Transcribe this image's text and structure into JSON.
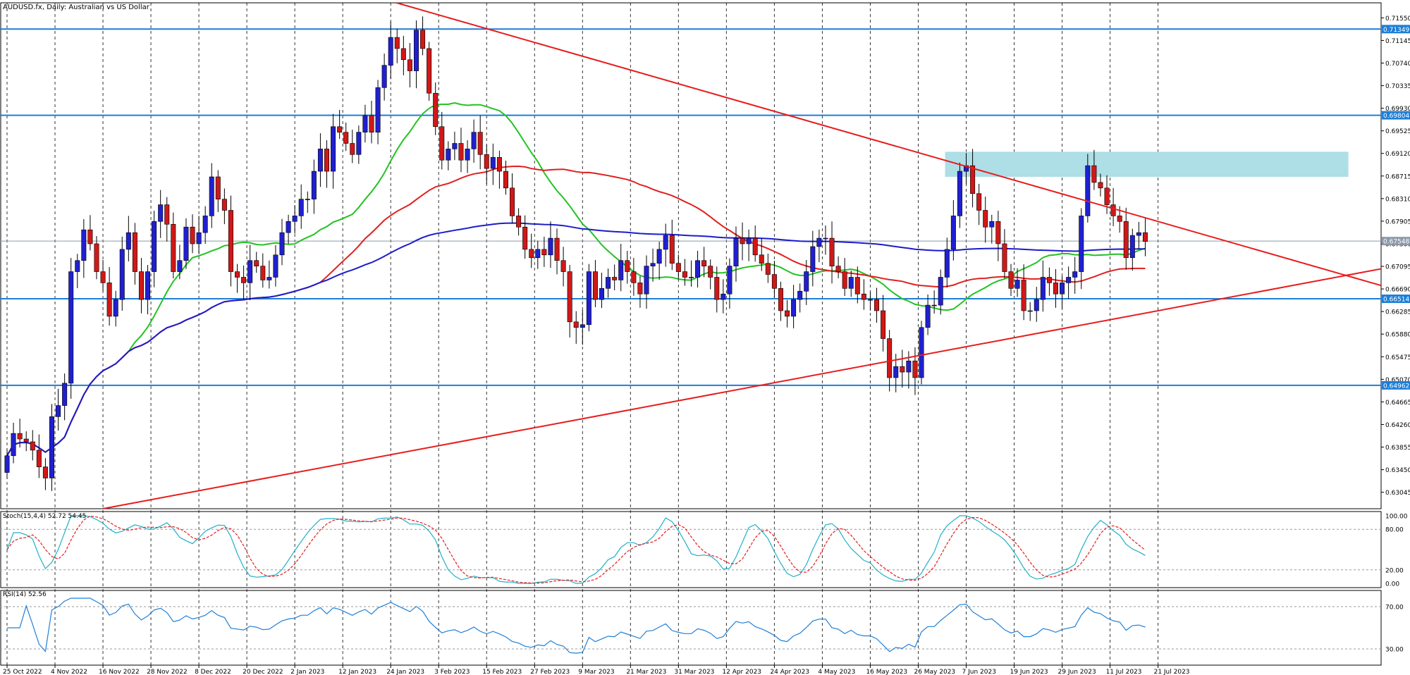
{
  "chart_data": {
    "type": "candlestick",
    "title": "AUDUSD.fx, Daily:  Australian vs US Dollar",
    "price_axis": {
      "ylim": [
        0.6275,
        0.7182
      ],
      "ticks": [
        "0.71550",
        "0.71145",
        "0.70740",
        "0.70335",
        "0.69930",
        "0.69525",
        "0.69120",
        "0.68715",
        "0.68310",
        "0.67905",
        "0.67500",
        "0.67095",
        "0.66690",
        "0.66285",
        "0.65880",
        "0.65475",
        "0.65070",
        "0.64665",
        "0.64260",
        "0.63855",
        "0.63450",
        "0.63045"
      ]
    },
    "price_labels": [
      {
        "text": "0.71349",
        "value": 0.71349,
        "color": "#1e7fd6"
      },
      {
        "text": "0.69804",
        "value": 0.69804,
        "color": "#1e7fd6"
      },
      {
        "text": "0.67548",
        "value": 0.67548,
        "color": "#8c9aa8"
      },
      {
        "text": "0.66514",
        "value": 0.66514,
        "color": "#1e7fd6"
      },
      {
        "text": "0.64962",
        "value": 0.64962,
        "color": "#1e7fd6"
      }
    ],
    "date_labels": [
      "25 Oct 2022",
      "4 Nov 2022",
      "16 Nov 2022",
      "28 Nov 2022",
      "8 Dec 2022",
      "20 Dec 2022",
      "2 Jan 2023",
      "12 Jan 2023",
      "24 Jan 2023",
      "3 Feb 2023",
      "15 Feb 2023",
      "27 Feb 2023",
      "9 Mar 2023",
      "21 Mar 2023",
      "31 Mar 2023",
      "12 Apr 2023",
      "24 Apr 2023",
      "4 May 2023",
      "16 May 2023",
      "26 May 2023",
      "7 Jun 2023",
      "19 Jun 2023",
      "29 Jun 2023",
      "11 Jul 2023",
      "21 Jul 2023"
    ],
    "closes": [
      0.637,
      0.641,
      0.64,
      0.6395,
      0.638,
      0.635,
      0.633,
      0.644,
      0.646,
      0.65,
      0.67,
      0.672,
      0.6775,
      0.675,
      0.67,
      0.668,
      0.662,
      0.665,
      0.674,
      0.677,
      0.67,
      0.665,
      0.67,
      0.679,
      0.682,
      0.6785,
      0.67,
      0.672,
      0.678,
      0.675,
      0.677,
      0.68,
      0.687,
      0.683,
      0.681,
      0.67,
      0.669,
      0.668,
      0.672,
      0.671,
      0.6685,
      0.669,
      0.673,
      0.677,
      0.679,
      0.68,
      0.683,
      0.683,
      0.688,
      0.692,
      0.688,
      0.696,
      0.695,
      0.693,
      0.691,
      0.695,
      0.698,
      0.695,
      0.703,
      0.707,
      0.712,
      0.71,
      0.708,
      0.706,
      0.7133,
      0.71,
      0.702,
      0.696,
      0.69,
      0.692,
      0.693,
      0.69,
      0.692,
      0.695,
      0.691,
      0.6885,
      0.6905,
      0.688,
      0.685,
      0.68,
      0.678,
      0.674,
      0.6725,
      0.674,
      0.673,
      0.676,
      0.672,
      0.67,
      0.661,
      0.66,
      0.6605,
      0.67,
      0.665,
      0.667,
      0.669,
      0.6685,
      0.672,
      0.67,
      0.668,
      0.666,
      0.671,
      0.6715,
      0.674,
      0.6765,
      0.6715,
      0.67,
      0.669,
      0.669,
      0.672,
      0.671,
      0.669,
      0.665,
      0.666,
      0.671,
      0.676,
      0.675,
      0.676,
      0.673,
      0.6715,
      0.6695,
      0.667,
      0.663,
      0.662,
      0.665,
      0.6665,
      0.67,
      0.6745,
      0.676,
      0.676,
      0.671,
      0.67,
      0.667,
      0.669,
      0.666,
      0.665,
      0.665,
      0.663,
      0.658,
      0.651,
      0.653,
      0.652,
      0.654,
      0.651,
      0.66,
      0.664,
      0.664,
      0.669,
      0.674,
      0.68,
      0.688,
      0.689,
      0.684,
      0.681,
      0.678,
      0.679,
      0.675,
      0.67,
      0.667,
      0.6685,
      0.663,
      0.663,
      0.665,
      0.669,
      0.668,
      0.666,
      0.668,
      0.669,
      0.67,
      0.68,
      0.689,
      0.686,
      0.685,
      0.682,
      0.68,
      0.679,
      0.6725,
      0.6765,
      0.677,
      0.6754
    ],
    "moving_averages": [
      {
        "color": "#22c322",
        "period": 20
      },
      {
        "color": "#e02020",
        "period": 50
      },
      {
        "color": "#1c1ccc",
        "period": 200
      }
    ],
    "trend_lines": [
      {
        "from": [
          "24 Jan 2023",
          0.7185
        ],
        "to": [
          "21 Jul 2023",
          0.679
        ],
        "color": "#e81c1c"
      },
      {
        "from": [
          "16 Nov 2022",
          0.6275
        ],
        "to": [
          "21 Jul 2023",
          0.663
        ],
        "color": "#e81c1c"
      }
    ],
    "zone": {
      "from": "7 Jun 2023",
      "to": "21 Jul 2023",
      "low": 0.687,
      "high": 0.6915,
      "color": "#aedee6"
    },
    "stochastic": {
      "label": "Stoch(15,4,4) 52.72 54.45",
      "ticks": [
        "100.00",
        "80.00",
        "20.00",
        "0.00"
      ],
      "main_color": "#20b0c8",
      "signal_color": "#e02020"
    },
    "rsi": {
      "label": "RSI(14) 52.56",
      "ticks": [
        "70.00",
        "30.00"
      ],
      "color": "#1f80d8"
    }
  }
}
